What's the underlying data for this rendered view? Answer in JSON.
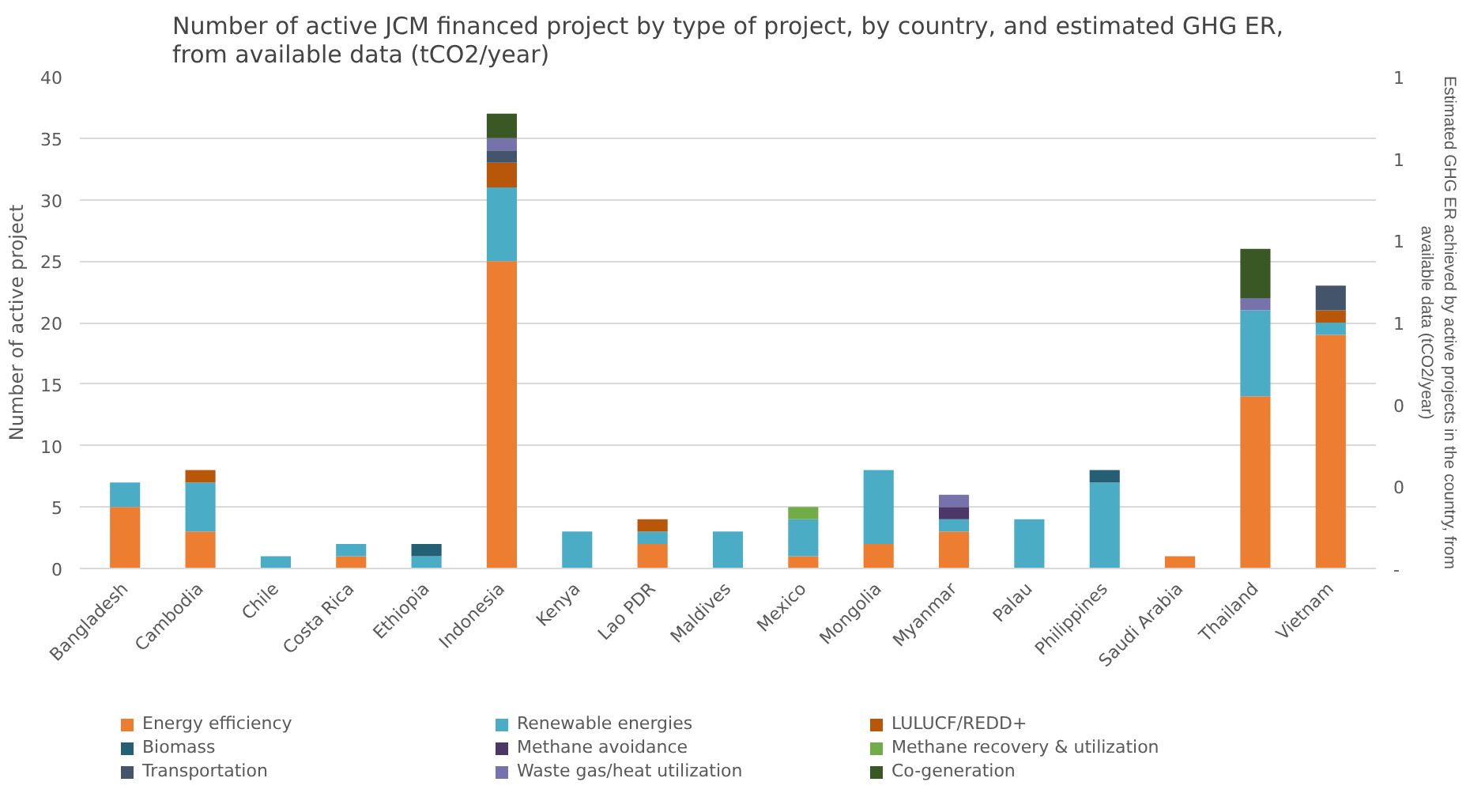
{
  "chart_data": {
    "type": "bar",
    "stacked": true,
    "title": "Number of active JCM financed project by type of project, by country, and estimated GHG ER,\nfrom available data (tCO2/year)",
    "ylabel": "Number of active project",
    "y2label": "Estimated GHG ER achieved by active projects in the country, from\navailable data (tCO2/year)",
    "categories": [
      "Bangladesh",
      "Cambodia",
      "Chile",
      "Costa Rica",
      "Ethiopia",
      "Indonesia",
      "Kenya",
      "Lao PDR",
      "Maldives",
      "Mexico",
      "Mongolia",
      "Myanmar",
      "Palau",
      "Philippines",
      "Saudi Arabia",
      "Thailand",
      "Vietnam"
    ],
    "series": [
      {
        "name": "Energy efficiency",
        "color": "#ed7d31",
        "values": [
          5,
          3,
          0,
          1,
          0,
          25,
          0,
          2,
          0,
          1,
          2,
          3,
          0,
          0,
          1,
          14,
          19
        ]
      },
      {
        "name": "Renewable energies",
        "color": "#4bacc6",
        "values": [
          2,
          4,
          1,
          1,
          1,
          6,
          3,
          1,
          3,
          3,
          6,
          1,
          4,
          7,
          0,
          7,
          1
        ]
      },
      {
        "name": "LULUCF/REDD+",
        "color": "#b8560a",
        "values": [
          0,
          1,
          0,
          0,
          0,
          2,
          0,
          1,
          0,
          0,
          0,
          0,
          0,
          0,
          0,
          0,
          1
        ]
      },
      {
        "name": "Biomass",
        "color": "#245f73",
        "values": [
          0,
          0,
          0,
          0,
          1,
          0,
          0,
          0,
          0,
          0,
          0,
          0,
          0,
          1,
          0,
          0,
          0
        ]
      },
      {
        "name": "Methane avoidance",
        "color": "#4b3867",
        "values": [
          0,
          0,
          0,
          0,
          0,
          0,
          0,
          0,
          0,
          0,
          0,
          1,
          0,
          0,
          0,
          0,
          0
        ]
      },
      {
        "name": "Methane recovery & utilization",
        "color": "#70ad47",
        "values": [
          0,
          0,
          0,
          0,
          0,
          0,
          0,
          0,
          0,
          1,
          0,
          0,
          0,
          0,
          0,
          0,
          0
        ]
      },
      {
        "name": "Transportation",
        "color": "#44546a",
        "values": [
          0,
          0,
          0,
          0,
          0,
          1,
          0,
          0,
          0,
          0,
          0,
          0,
          0,
          0,
          0,
          0,
          2
        ]
      },
      {
        "name": "Waste gas/heat utilization",
        "color": "#7672ac",
        "values": [
          0,
          0,
          0,
          0,
          0,
          1,
          0,
          0,
          0,
          0,
          0,
          1,
          0,
          0,
          0,
          1,
          0
        ]
      },
      {
        "name": "Co-generation",
        "color": "#3a5823",
        "values": [
          0,
          0,
          0,
          0,
          0,
          2,
          0,
          0,
          0,
          0,
          0,
          0,
          0,
          0,
          0,
          4,
          0
        ]
      }
    ],
    "ylim": [
      0,
      40
    ],
    "yticks": [
      0,
      5,
      10,
      15,
      20,
      25,
      30,
      35,
      40
    ],
    "y2lim": [
      0,
      1.2
    ],
    "y2ticks": [
      {
        "value": 0,
        "label": "-"
      },
      {
        "value": 0.2,
        "label": "0"
      },
      {
        "value": 0.4,
        "label": "0"
      },
      {
        "value": 0.6,
        "label": "1"
      },
      {
        "value": 0.8,
        "label": "1"
      },
      {
        "value": 1.0,
        "label": "1"
      },
      {
        "value": 1.2,
        "label": "1"
      }
    ],
    "grid": "y",
    "legend": "bottom"
  }
}
